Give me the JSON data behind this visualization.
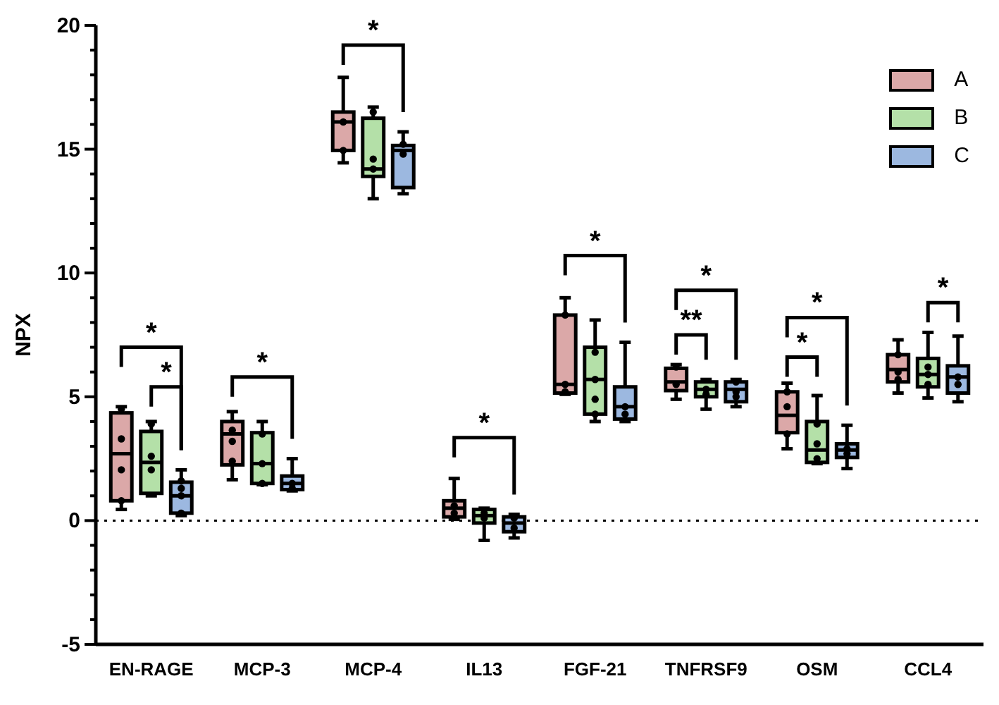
{
  "chart_data": {
    "type": "box",
    "ylabel": "NPX",
    "categories": [
      "EN-RAGE",
      "MCP-3",
      "MCP-4",
      "IL13",
      "FGF-21",
      "TNFRSF9",
      "OSM",
      "CCL4"
    ],
    "ylim": [
      -5,
      20
    ],
    "yticks": [
      -5,
      {
        "value": -4,
        "label": null
      },
      {
        "value": -3,
        "label": null
      },
      {
        "value": -2,
        "label": null
      },
      {
        "value": -1,
        "label": null
      },
      0,
      {
        "value": 1,
        "label": null
      },
      {
        "value": 2,
        "label": null
      },
      {
        "value": 3,
        "label": null
      },
      {
        "value": 4,
        "label": null
      },
      5,
      {
        "value": 6,
        "label": null
      },
      {
        "value": 7,
        "label": null
      },
      {
        "value": 8,
        "label": null
      },
      {
        "value": 9,
        "label": null
      },
      10,
      {
        "value": 11,
        "label": null
      },
      {
        "value": 12,
        "label": null
      },
      {
        "value": 13,
        "label": null
      },
      {
        "value": 14,
        "label": null
      },
      15,
      {
        "value": 16,
        "label": null
      },
      {
        "value": 17,
        "label": null
      },
      {
        "value": 18,
        "label": null
      },
      {
        "value": 19,
        "label": null
      },
      20
    ],
    "legend": "top right",
    "ref_lines": [
      {
        "axis": "y",
        "value": 0,
        "line_style": "dotted",
        "color": "#000000"
      }
    ],
    "annotations": [
      "*",
      "*",
      "*",
      "*",
      "*",
      "*",
      "**",
      "*",
      "*",
      "*",
      "*"
    ],
    "series": [
      {
        "name": "A",
        "color": "#dba8a8",
        "boxes": [
          {
            "low": 0.45,
            "q1": 0.8,
            "median": 2.7,
            "q3": 4.35,
            "high": 4.6
          },
          {
            "low": 1.65,
            "q1": 2.25,
            "median": 3.5,
            "q3": 4.0,
            "high": 4.4
          },
          {
            "low": 14.45,
            "q1": 14.95,
            "median": 16.1,
            "q3": 16.5,
            "high": 17.9
          },
          {
            "low": 0.05,
            "q1": 0.15,
            "median": 0.5,
            "q3": 0.8,
            "high": 1.7
          },
          {
            "low": 5.1,
            "q1": 5.15,
            "median": 5.5,
            "q3": 8.3,
            "high": 9.0
          },
          {
            "low": 4.9,
            "q1": 5.25,
            "median": 5.6,
            "q3": 6.15,
            "high": 6.3
          },
          {
            "low": 2.9,
            "q1": 3.55,
            "median": 4.25,
            "q3": 5.2,
            "high": 5.55
          },
          {
            "low": 5.15,
            "q1": 5.6,
            "median": 6.1,
            "q3": 6.7,
            "high": 7.3
          }
        ]
      },
      {
        "name": "B",
        "color": "#b4e0a8",
        "boxes": [
          {
            "low": 1.0,
            "q1": 1.1,
            "median": 2.35,
            "q3": 3.6,
            "high": 4.0
          },
          {
            "low": 1.45,
            "q1": 1.5,
            "median": 2.3,
            "q3": 3.55,
            "high": 4.0
          },
          {
            "low": 13.0,
            "q1": 13.9,
            "median": 14.2,
            "q3": 16.25,
            "high": 16.7
          },
          {
            "low": -0.8,
            "q1": -0.1,
            "median": 0.2,
            "q3": 0.45,
            "high": 0.5
          },
          {
            "low": 4.0,
            "q1": 4.3,
            "median": 5.7,
            "q3": 7.0,
            "high": 8.1
          },
          {
            "low": 4.5,
            "q1": 5.0,
            "median": 5.3,
            "q3": 5.6,
            "high": 5.7
          },
          {
            "low": 2.3,
            "q1": 2.35,
            "median": 2.85,
            "q3": 4.0,
            "high": 5.05
          },
          {
            "low": 4.95,
            "q1": 5.4,
            "median": 5.9,
            "q3": 6.55,
            "high": 7.6
          }
        ]
      },
      {
        "name": "C",
        "color": "#9cb8e0",
        "boxes": [
          {
            "low": 0.2,
            "q1": 0.3,
            "median": 1.0,
            "q3": 1.55,
            "high": 2.05
          },
          {
            "low": 1.2,
            "q1": 1.25,
            "median": 1.5,
            "q3": 1.8,
            "high": 2.5
          },
          {
            "low": 13.2,
            "q1": 13.45,
            "median": 14.95,
            "q3": 15.15,
            "high": 15.7
          },
          {
            "low": -0.7,
            "q1": -0.45,
            "median": -0.1,
            "q3": 0.15,
            "high": 0.25
          },
          {
            "low": 4.0,
            "q1": 4.1,
            "median": 4.6,
            "q3": 5.4,
            "high": 7.2
          },
          {
            "low": 4.6,
            "q1": 4.8,
            "median": 5.3,
            "q3": 5.6,
            "high": 5.7
          },
          {
            "low": 2.1,
            "q1": 2.55,
            "median": 2.85,
            "q3": 3.1,
            "high": 3.85
          },
          {
            "low": 4.8,
            "q1": 5.15,
            "median": 5.8,
            "q3": 6.25,
            "high": 7.45
          }
        ]
      },
      {
        "type": "scatter",
        "color": "#000000",
        "x": [
          "EN-RAGE",
          "EN-RAGE",
          "EN-RAGE",
          "EN-RAGE",
          "MCP-3",
          "MCP-3",
          "MCP-3",
          "MCP-4",
          "MCP-4",
          "IL13",
          "IL13",
          "FGF-21",
          "FGF-21",
          "FGF-21",
          "TNFRSF9",
          "TNFRSF9",
          "OSM",
          "OSM",
          "OSM",
          "CCL4",
          "CCL4",
          "CCL4"
        ],
        "values": [
          4.5,
          3.3,
          2.05,
          0.8,
          3.65,
          3.2,
          2.4,
          16.1,
          14.95,
          0.6,
          0.3,
          8.3,
          5.5,
          5.2,
          6.2,
          5.5,
          5.2,
          4.6,
          3.5,
          6.7,
          6.0,
          5.7
        ]
      },
      {
        "type": "scatter",
        "color": "#000000",
        "x": [
          "EN-RAGE",
          "EN-RAGE",
          "EN-RAGE",
          "MCP-3",
          "MCP-3",
          "MCP-3",
          "MCP-4",
          "MCP-4",
          "MCP-4",
          "IL13",
          "IL13",
          "FGF-21",
          "FGF-21",
          "FGF-21",
          "FGF-21",
          "TNFRSF9",
          "TNFRSF9",
          "OSM",
          "OSM",
          "OSM",
          "CCL4",
          "CCL4",
          "CCL4"
        ],
        "values": [
          3.9,
          2.6,
          2.05,
          3.5,
          2.3,
          1.5,
          16.5,
          14.6,
          14.2,
          0.3,
          0.1,
          6.8,
          5.7,
          4.9,
          4.3,
          5.3,
          5.1,
          3.9,
          3.1,
          2.5,
          6.2,
          5.9,
          5.5
        ]
      },
      {
        "type": "scatter",
        "color": "#000000",
        "x": [
          "EN-RAGE",
          "EN-RAGE",
          "EN-RAGE",
          "EN-RAGE",
          "MCP-3",
          "MCP-3",
          "MCP-4",
          "MCP-4",
          "IL13",
          "IL13",
          "FGF-21",
          "FGF-21",
          "TNFRSF9",
          "TNFRSF9",
          "TNFRSF9",
          "OSM",
          "OSM",
          "CCL4",
          "CCL4"
        ],
        "values": [
          1.6,
          1.3,
          1.0,
          0.3,
          1.5,
          1.3,
          15.2,
          14.8,
          0.1,
          -0.3,
          4.6,
          4.3,
          5.6,
          5.2,
          5.0,
          2.9,
          2.7,
          5.8,
          5.5
        ]
      }
    ]
  }
}
